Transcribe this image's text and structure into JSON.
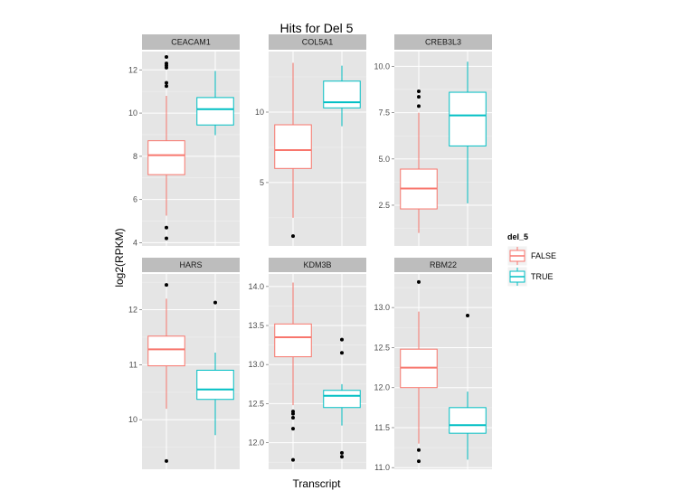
{
  "chart_data": {
    "type": "box",
    "title": "Hits for Del 5",
    "xlabel": "Transcript",
    "ylabel": "log2(RPKM)",
    "legend": {
      "title": "del_5",
      "placement": "right",
      "entries": [
        {
          "label": "FALSE",
          "color": "#F8766D"
        },
        {
          "label": "TRUE",
          "color": "#00BFC4"
        }
      ]
    },
    "groups": [
      "FALSE",
      "TRUE"
    ],
    "panels": [
      {
        "name": "CEACAM1",
        "ylim": [
          3.85,
          12.85
        ],
        "ticks": [
          4,
          6,
          8,
          10,
          12
        ],
        "tick_labels": [
          "4",
          "6",
          "8",
          "10",
          "12"
        ],
        "boxes": [
          {
            "group": "FALSE",
            "min": 5.25,
            "q1": 7.15,
            "median": 8.05,
            "q3": 8.72,
            "max": 10.8,
            "outliers": [
              4.2,
              4.7,
              11.25,
              11.4,
              12.1,
              12.2,
              12.3,
              12.6
            ]
          },
          {
            "group": "TRUE",
            "min": 8.98,
            "q1": 9.45,
            "median": 10.18,
            "q3": 10.72,
            "max": 11.95,
            "outliers": []
          }
        ]
      },
      {
        "name": "COL5A1",
        "ylim": [
          0.5,
          14.3
        ],
        "ticks": [
          5,
          10
        ],
        "tick_labels": [
          "5",
          "10"
        ],
        "boxes": [
          {
            "group": "FALSE",
            "min": 2.5,
            "q1": 6.0,
            "median": 7.3,
            "q3": 9.1,
            "max": 13.5,
            "outliers": [
              1.2
            ]
          },
          {
            "group": "TRUE",
            "min": 9.0,
            "q1": 10.3,
            "median": 10.7,
            "q3": 12.2,
            "max": 13.3,
            "outliers": []
          }
        ]
      },
      {
        "name": "CREB3L3",
        "ylim": [
          0.3,
          10.8
        ],
        "ticks": [
          2.5,
          5.0,
          7.5,
          10.0
        ],
        "tick_labels": [
          "2.5",
          "5.0",
          "7.5",
          "10.0"
        ],
        "boxes": [
          {
            "group": "FALSE",
            "min": 1.0,
            "q1": 2.3,
            "median": 3.4,
            "q3": 4.45,
            "max": 7.5,
            "outliers": [
              7.85,
              8.35,
              8.65
            ]
          },
          {
            "group": "TRUE",
            "min": 2.6,
            "q1": 5.7,
            "median": 7.35,
            "q3": 8.6,
            "max": 10.25,
            "outliers": []
          }
        ]
      },
      {
        "name": "HARS",
        "ylim": [
          9.1,
          12.65
        ],
        "ticks": [
          10,
          11,
          12
        ],
        "tick_labels": [
          "10",
          "11",
          "12"
        ],
        "boxes": [
          {
            "group": "FALSE",
            "min": 10.2,
            "q1": 10.98,
            "median": 11.28,
            "q3": 11.52,
            "max": 12.2,
            "outliers": [
              9.25,
              12.45
            ]
          },
          {
            "group": "TRUE",
            "min": 9.72,
            "q1": 10.37,
            "median": 10.55,
            "q3": 10.9,
            "max": 11.22,
            "outliers": [
              12.13
            ]
          }
        ]
      },
      {
        "name": "KDM3B",
        "ylim": [
          11.66,
          14.16
        ],
        "ticks": [
          12.0,
          12.5,
          13.0,
          13.5,
          14.0
        ],
        "tick_labels": [
          "12.0",
          "12.5",
          "13.0",
          "13.5",
          "14.0"
        ],
        "boxes": [
          {
            "group": "FALSE",
            "min": 12.48,
            "q1": 13.1,
            "median": 13.35,
            "q3": 13.52,
            "max": 14.05,
            "outliers": [
              11.78,
              12.18,
              12.32,
              12.37,
              12.4
            ]
          },
          {
            "group": "TRUE",
            "min": 12.22,
            "q1": 12.45,
            "median": 12.6,
            "q3": 12.67,
            "max": 12.75,
            "outliers": [
              11.82,
              11.87,
              13.15,
              13.32
            ]
          }
        ]
      },
      {
        "name": "RBM22",
        "ylim": [
          10.98,
          13.42
        ],
        "ticks": [
          11.0,
          11.5,
          12.0,
          12.5,
          13.0
        ],
        "tick_labels": [
          "11.0",
          "11.5",
          "12.0",
          "12.5",
          "13.0"
        ],
        "boxes": [
          {
            "group": "FALSE",
            "min": 11.3,
            "q1": 12.0,
            "median": 12.25,
            "q3": 12.48,
            "max": 12.95,
            "outliers": [
              11.08,
              11.22,
              13.32
            ]
          },
          {
            "group": "TRUE",
            "min": 11.1,
            "q1": 11.43,
            "median": 11.53,
            "q3": 11.75,
            "max": 11.95,
            "outliers": [
              12.9
            ]
          }
        ]
      }
    ]
  }
}
